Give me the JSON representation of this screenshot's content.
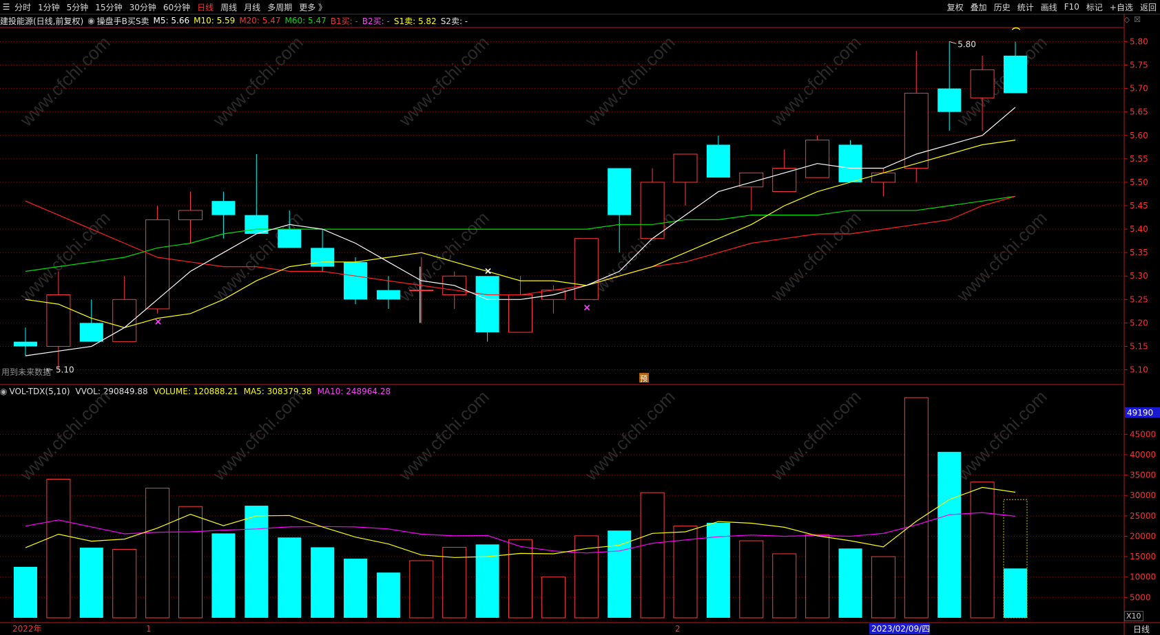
{
  "toolbar": {
    "menu_icon": "menu-icon",
    "periods": [
      "分时",
      "1分钟",
      "5分钟",
      "15分钟",
      "30分钟",
      "60分钟",
      "日线",
      "周线",
      "月线",
      "多周期",
      "更多 》"
    ],
    "active_period": "日线",
    "right_items": [
      "复权",
      "叠加",
      "历史",
      "统计",
      "画线",
      "F10",
      "标记",
      "+自选",
      "返回"
    ]
  },
  "info": {
    "stock": "建投能源(日线,前复权)",
    "indicator": "操盘手B买S卖",
    "m5": "M5: 5.66",
    "m10": "M10: 5.59",
    "m20": "M20: 5.47",
    "m60": "M60: 5.47",
    "b1": "B1买: -",
    "b2": "B2买: -",
    "s1": "S1卖: 5.82",
    "s2": "S2卖: -"
  },
  "volume_info": {
    "name": "VOL-TDX(5,10)",
    "vvol": "VVOL: 290849.88",
    "volume": "VOLUME: 120888.21",
    "ma5": "MA5: 308379.38",
    "ma10": "MA10: 248964.28"
  },
  "annotations": {
    "low_label": "5.10",
    "high_label": "5.80",
    "future_data": "用到未来数据",
    "pre_mark": "预",
    "volume_badge": "49190",
    "x10": "X10"
  },
  "x_labels": {
    "year": "2022年",
    "m1": "1",
    "m2": "2",
    "date": "2023/02/09/四"
  },
  "period_label": "日线",
  "watermark": "www.cfchi.com",
  "colors": {
    "up": "#ff3a3a",
    "down": "#00ffff",
    "ma5": "#ffffff",
    "ma10": "#ffff00",
    "ma20": "#ff2020",
    "ma60": "#00e000",
    "vma5": "#ffff00",
    "vma10": "#ff00ff",
    "axis": "#c01818",
    "grid": "#7a1010"
  },
  "chart_data": [
    {
      "type": "candlestick",
      "price_axis": {
        "ylim": [
          5.07,
          5.83
        ],
        "ticks": [
          5.1,
          5.15,
          5.2,
          5.25,
          5.3,
          5.35,
          5.4,
          5.45,
          5.5,
          5.55,
          5.6,
          5.65,
          5.7,
          5.75,
          5.8
        ]
      },
      "candles": [
        {
          "o": 5.16,
          "h": 5.19,
          "l": 5.13,
          "c": 5.15
        },
        {
          "o": 5.15,
          "h": 5.31,
          "l": 5.1,
          "c": 5.26
        },
        {
          "o": 5.2,
          "h": 5.25,
          "l": 5.16,
          "c": 5.16
        },
        {
          "o": 5.16,
          "h": 5.3,
          "l": 5.16,
          "c": 5.25
        },
        {
          "o": 5.23,
          "h": 5.45,
          "l": 5.22,
          "c": 5.42
        },
        {
          "o": 5.42,
          "h": 5.48,
          "l": 5.37,
          "c": 5.44
        },
        {
          "o": 5.46,
          "h": 5.48,
          "l": 5.38,
          "c": 5.43
        },
        {
          "o": 5.43,
          "h": 5.56,
          "l": 5.39,
          "c": 5.39
        },
        {
          "o": 5.4,
          "h": 5.44,
          "l": 5.36,
          "c": 5.36
        },
        {
          "o": 5.36,
          "h": 5.4,
          "l": 5.31,
          "c": 5.32
        },
        {
          "o": 5.33,
          "h": 5.34,
          "l": 5.24,
          "c": 5.25
        },
        {
          "o": 5.27,
          "h": 5.3,
          "l": 5.23,
          "c": 5.25
        },
        {
          "o": 5.27,
          "h": 5.34,
          "l": 5.2,
          "c": 5.27
        },
        {
          "o": 5.26,
          "h": 5.31,
          "l": 5.23,
          "c": 5.3
        },
        {
          "o": 5.3,
          "h": 5.3,
          "l": 5.16,
          "c": 5.18
        },
        {
          "o": 5.18,
          "h": 5.3,
          "l": 5.18,
          "c": 5.26
        },
        {
          "o": 5.25,
          "h": 5.28,
          "l": 5.22,
          "c": 5.27
        },
        {
          "o": 5.25,
          "h": 5.38,
          "l": 5.25,
          "c": 5.38
        },
        {
          "o": 5.53,
          "h": 5.53,
          "l": 5.35,
          "c": 5.43
        },
        {
          "o": 5.38,
          "h": 5.53,
          "l": 5.38,
          "c": 5.5
        },
        {
          "o": 5.5,
          "h": 5.56,
          "l": 5.45,
          "c": 5.56
        },
        {
          "o": 5.58,
          "h": 5.6,
          "l": 5.51,
          "c": 5.51
        },
        {
          "o": 5.49,
          "h": 5.52,
          "l": 5.44,
          "c": 5.52
        },
        {
          "o": 5.48,
          "h": 5.57,
          "l": 5.48,
          "c": 5.53
        },
        {
          "o": 5.51,
          "h": 5.6,
          "l": 5.51,
          "c": 5.59
        },
        {
          "o": 5.58,
          "h": 5.59,
          "l": 5.5,
          "c": 5.5
        },
        {
          "o": 5.5,
          "h": 5.53,
          "l": 5.47,
          "c": 5.52
        },
        {
          "o": 5.53,
          "h": 5.78,
          "l": 5.5,
          "c": 5.69
        },
        {
          "o": 5.7,
          "h": 5.8,
          "l": 5.61,
          "c": 5.65
        },
        {
          "o": 5.68,
          "h": 5.77,
          "l": 5.61,
          "c": 5.74
        },
        {
          "o": 5.77,
          "h": 5.8,
          "l": 5.69,
          "c": 5.69
        }
      ],
      "ma5": [
        5.13,
        5.14,
        5.15,
        5.19,
        5.25,
        5.31,
        5.35,
        5.39,
        5.41,
        5.4,
        5.37,
        5.33,
        5.29,
        5.28,
        5.25,
        5.25,
        5.26,
        5.28,
        5.31,
        5.38,
        5.43,
        5.48,
        5.5,
        5.52,
        5.54,
        5.53,
        5.53,
        5.56,
        5.58,
        5.6,
        5.66
      ],
      "ma10": [
        5.25,
        5.24,
        5.21,
        5.19,
        5.21,
        5.22,
        5.25,
        5.29,
        5.32,
        5.33,
        5.33,
        5.34,
        5.35,
        5.33,
        5.31,
        5.29,
        5.29,
        5.28,
        5.3,
        5.32,
        5.35,
        5.38,
        5.41,
        5.45,
        5.48,
        5.5,
        5.52,
        5.54,
        5.56,
        5.58,
        5.59
      ],
      "ma20": [
        5.46,
        5.43,
        5.4,
        5.37,
        5.34,
        5.33,
        5.32,
        5.32,
        5.31,
        5.31,
        5.3,
        5.29,
        5.28,
        5.27,
        5.26,
        5.26,
        5.27,
        5.28,
        5.3,
        5.32,
        5.33,
        5.35,
        5.37,
        5.38,
        5.39,
        5.39,
        5.4,
        5.41,
        5.42,
        5.45,
        5.47
      ],
      "ma60": [
        5.31,
        5.32,
        5.33,
        5.34,
        5.36,
        5.37,
        5.39,
        5.4,
        5.4,
        5.4,
        5.4,
        5.4,
        5.4,
        5.4,
        5.4,
        5.4,
        5.4,
        5.4,
        5.41,
        5.41,
        5.42,
        5.42,
        5.43,
        5.43,
        5.43,
        5.44,
        5.44,
        5.44,
        5.45,
        5.46,
        5.47
      ],
      "buy_marks": [
        4,
        17
      ],
      "sell_mark_white": 14,
      "vertical_marker": 12
    },
    {
      "type": "bar",
      "volume_axis": {
        "ylim": [
          0,
          54000
        ],
        "ticks": [
          5000,
          10000,
          15000,
          20000,
          25000,
          30000,
          35000,
          40000,
          45000
        ]
      },
      "volumes": [
        12500,
        34000,
        17200,
        16800,
        31800,
        27300,
        20700,
        27500,
        19700,
        17300,
        14500,
        11100,
        14000,
        17300,
        18000,
        19200,
        10000,
        20100,
        21400,
        30700,
        22500,
        23300,
        18900,
        15700,
        20400,
        17000,
        15000,
        54000,
        40700,
        33300,
        12100
      ],
      "vma5": [
        17200,
        20500,
        18800,
        19300,
        22000,
        25400,
        22600,
        25000,
        25100,
        22300,
        19800,
        18100,
        15400,
        14800,
        15000,
        15800,
        15700,
        17000,
        17800,
        20700,
        21100,
        23600,
        23200,
        22200,
        20100,
        18900,
        17400,
        23700,
        29000,
        32000,
        30800
      ],
      "vma10": [
        22500,
        24000,
        22300,
        20600,
        21000,
        21100,
        21500,
        21800,
        22300,
        22400,
        22300,
        21800,
        20500,
        20100,
        20200,
        17500,
        16400,
        15900,
        16400,
        18300,
        19100,
        19900,
        20300,
        20000,
        20200,
        20000,
        20700,
        22800,
        25300,
        25800,
        24900
      ],
      "ghost_bar": {
        "index": 30,
        "value": 29000
      }
    }
  ]
}
